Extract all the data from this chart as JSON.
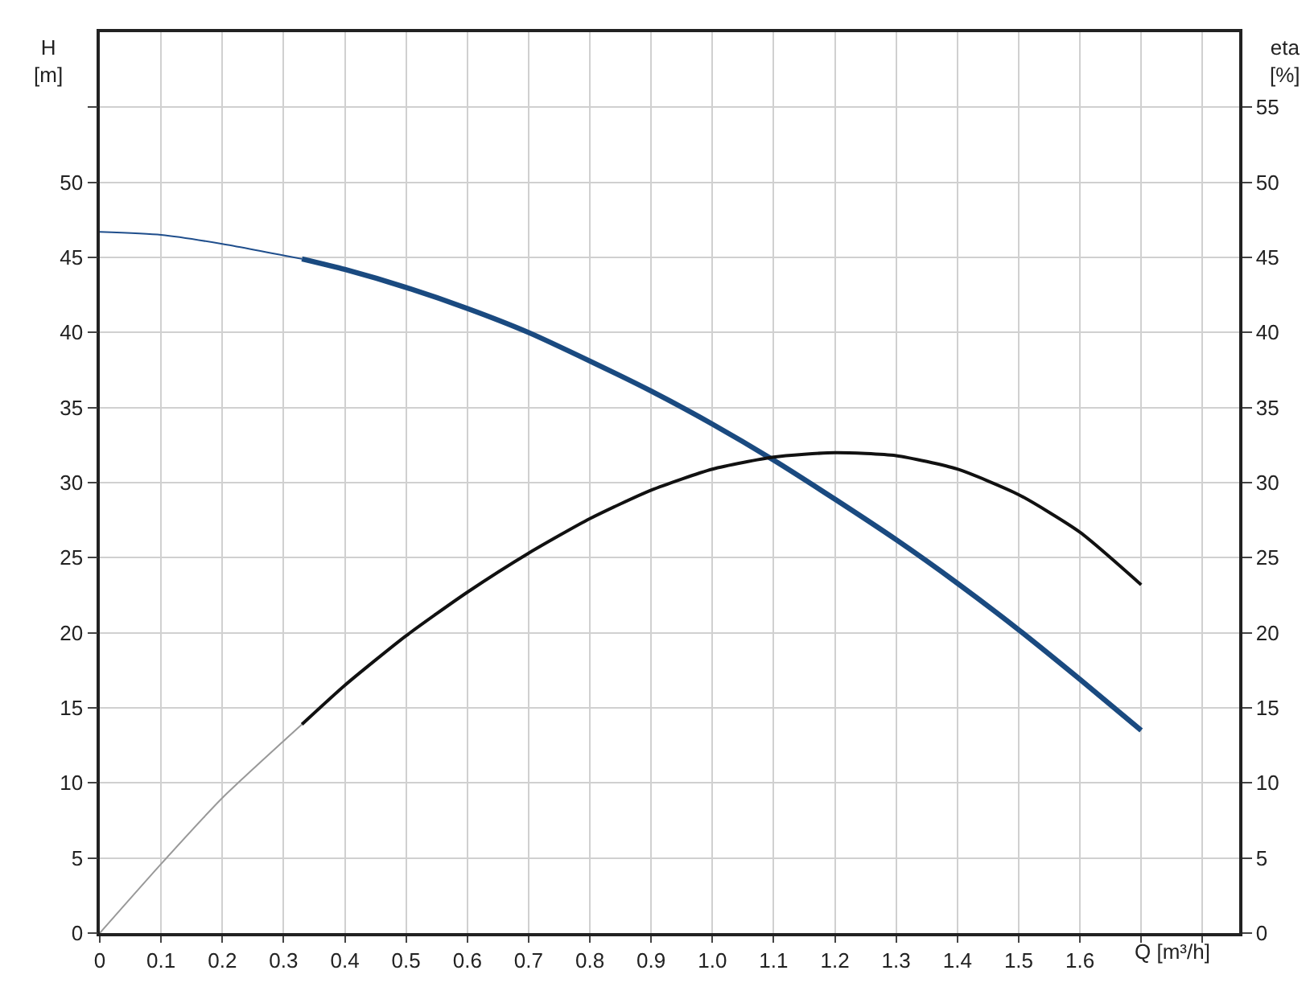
{
  "chart_data": {
    "type": "line",
    "xlabel": "Q [m³/h]",
    "ylabel": "H\n[m]",
    "y2label": "eta\n[%]",
    "xlim": [
      0,
      1.86
    ],
    "ylim": [
      0,
      60
    ],
    "y2lim": [
      0,
      60
    ],
    "xticks": [
      0,
      0.1,
      0.2,
      0.3,
      0.4,
      0.5,
      0.6,
      0.7,
      0.8,
      0.9,
      {
        "value": 1,
        "label": "1.0"
      },
      1.1,
      1.2,
      1.3,
      1.4,
      1.5,
      1.6,
      {
        "value": 1.7,
        "label": null
      },
      {
        "value": 1.8,
        "label": null
      }
    ],
    "yticks": [
      0,
      5,
      10,
      15,
      20,
      25,
      30,
      35,
      40,
      45,
      50,
      {
        "value": 55,
        "label": null
      }
    ],
    "y2ticks": [
      0,
      5,
      10,
      15,
      20,
      25,
      30,
      35,
      40,
      45,
      50,
      55
    ],
    "grid": true,
    "marker": "none",
    "line_style": "solid",
    "series": [
      {
        "color": "#1f4e8c",
        "x": [
          0,
          0.1,
          0.2,
          0.33
        ],
        "values": [
          46.7,
          46.5,
          45.9,
          44.9
        ]
      },
      {
        "color": "#1a4a80",
        "x": [
          0.33,
          0.4,
          0.5,
          0.6,
          0.7,
          0.8,
          0.9,
          1.0,
          1.1,
          1.2,
          1.3,
          1.4,
          1.5,
          1.6,
          1.7
        ],
        "values": [
          44.9,
          44.2,
          43.0,
          41.6,
          40.0,
          38.1,
          36.1,
          33.9,
          31.5,
          28.9,
          26.2,
          23.3,
          20.2,
          16.9,
          13.5
        ]
      },
      {
        "color": "#999999",
        "axis": "y2",
        "x": [
          0,
          0.1,
          0.2,
          0.33
        ],
        "values": [
          0,
          4.6,
          9.0,
          13.9
        ]
      },
      {
        "color": "#111111",
        "axis": "y2",
        "x": [
          0.33,
          0.4,
          0.5,
          0.6,
          0.7,
          0.8,
          0.9,
          1.0,
          1.1,
          1.2,
          1.3,
          1.4,
          1.5,
          1.6,
          1.7
        ],
        "values": [
          13.9,
          16.5,
          19.8,
          22.7,
          25.3,
          27.6,
          29.5,
          30.9,
          31.7,
          32.0,
          31.8,
          30.9,
          29.2,
          26.7,
          23.2
        ]
      }
    ]
  }
}
